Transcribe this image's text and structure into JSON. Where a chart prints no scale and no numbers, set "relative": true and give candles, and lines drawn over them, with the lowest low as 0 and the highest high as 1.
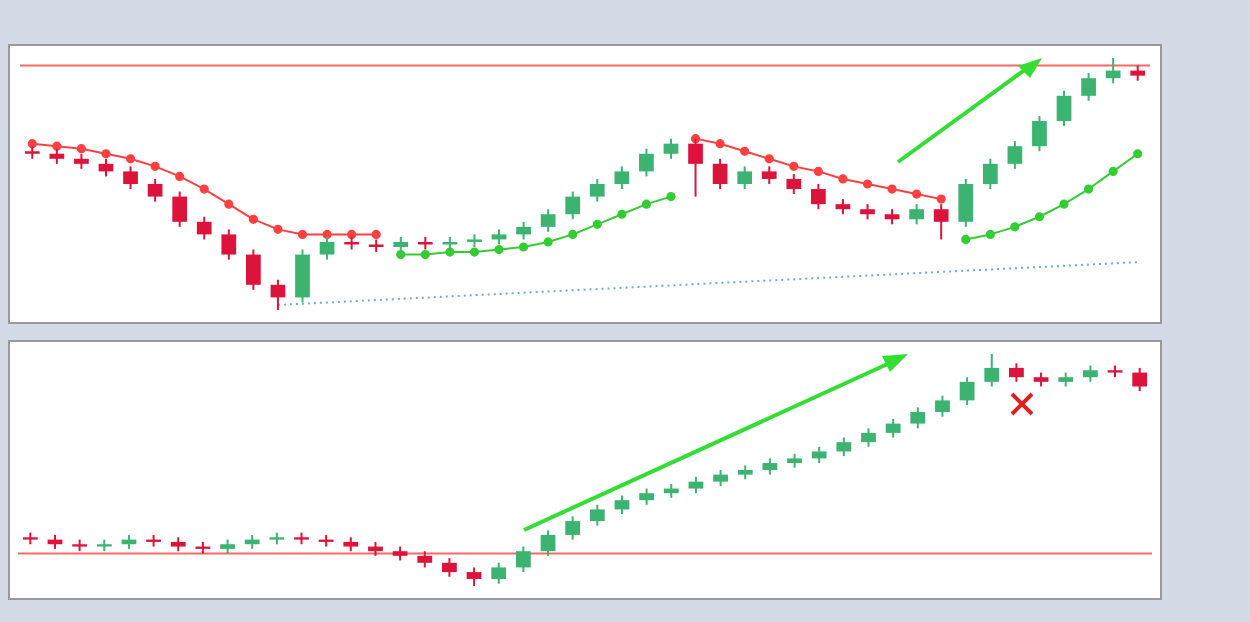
{
  "chart_data": [
    {
      "type": "candlestick",
      "relative": true,
      "categories": [
        null,
        null,
        null,
        null,
        null,
        null,
        null,
        null,
        null,
        null,
        null,
        null,
        null,
        null,
        null,
        null,
        null,
        null,
        null,
        null,
        null,
        null,
        null,
        null,
        null,
        null,
        null,
        null,
        null,
        null,
        null,
        null,
        null,
        null,
        null,
        null,
        null,
        null,
        null,
        null,
        null,
        null,
        null,
        null,
        null,
        null
      ],
      "ohlc": [
        [
          0.63,
          0.65,
          0.6,
          0.62
        ],
        [
          0.62,
          0.64,
          0.58,
          0.6
        ],
        [
          0.6,
          0.62,
          0.56,
          0.58
        ],
        [
          0.58,
          0.6,
          0.53,
          0.55
        ],
        [
          0.55,
          0.57,
          0.48,
          0.5
        ],
        [
          0.5,
          0.52,
          0.43,
          0.45
        ],
        [
          0.45,
          0.47,
          0.33,
          0.35
        ],
        [
          0.35,
          0.37,
          0.28,
          0.3
        ],
        [
          0.3,
          0.32,
          0.2,
          0.22
        ],
        [
          0.22,
          0.24,
          0.08,
          0.1
        ],
        [
          0.1,
          0.12,
          0.0,
          0.05
        ],
        [
          0.05,
          0.24,
          0.03,
          0.22
        ],
        [
          0.22,
          0.29,
          0.2,
          0.27
        ],
        [
          0.27,
          0.29,
          0.24,
          0.26
        ],
        [
          0.26,
          0.28,
          0.23,
          0.25
        ],
        [
          0.25,
          0.29,
          0.23,
          0.27
        ],
        [
          0.27,
          0.29,
          0.24,
          0.26
        ],
        [
          0.26,
          0.29,
          0.24,
          0.27
        ],
        [
          0.27,
          0.3,
          0.25,
          0.28
        ],
        [
          0.28,
          0.32,
          0.26,
          0.3
        ],
        [
          0.3,
          0.35,
          0.28,
          0.33
        ],
        [
          0.33,
          0.4,
          0.31,
          0.38
        ],
        [
          0.38,
          0.47,
          0.36,
          0.45
        ],
        [
          0.45,
          0.52,
          0.43,
          0.5
        ],
        [
          0.5,
          0.57,
          0.48,
          0.55
        ],
        [
          0.55,
          0.64,
          0.53,
          0.62
        ],
        [
          0.62,
          0.68,
          0.6,
          0.66
        ],
        [
          0.66,
          0.68,
          0.45,
          0.58
        ],
        [
          0.58,
          0.6,
          0.48,
          0.5
        ],
        [
          0.5,
          0.57,
          0.48,
          0.55
        ],
        [
          0.55,
          0.57,
          0.5,
          0.52
        ],
        [
          0.52,
          0.54,
          0.46,
          0.48
        ],
        [
          0.48,
          0.5,
          0.4,
          0.42
        ],
        [
          0.42,
          0.44,
          0.38,
          0.4
        ],
        [
          0.4,
          0.42,
          0.36,
          0.38
        ],
        [
          0.38,
          0.4,
          0.34,
          0.36
        ],
        [
          0.36,
          0.42,
          0.34,
          0.4
        ],
        [
          0.4,
          0.42,
          0.28,
          0.35
        ],
        [
          0.35,
          0.52,
          0.33,
          0.5
        ],
        [
          0.5,
          0.6,
          0.48,
          0.58
        ],
        [
          0.58,
          0.67,
          0.56,
          0.65
        ],
        [
          0.65,
          0.77,
          0.63,
          0.75
        ],
        [
          0.75,
          0.87,
          0.73,
          0.85
        ],
        [
          0.85,
          0.94,
          0.83,
          0.92
        ],
        [
          0.92,
          1.0,
          0.9,
          0.95
        ],
        [
          0.95,
          0.97,
          0.91,
          0.93
        ]
      ],
      "colors": [
        "#dc143c",
        "#dc143c",
        "#dc143c",
        "#dc143c",
        "#dc143c",
        "#dc143c",
        "#dc143c",
        "#dc143c",
        "#dc143c",
        "#dc143c",
        "#dc143c",
        "#3cb371",
        "#3cb371",
        "#dc143c",
        "#dc143c",
        "#3cb371",
        "#dc143c",
        "#3cb371",
        "#3cb371",
        "#3cb371",
        "#3cb371",
        "#3cb371",
        "#3cb371",
        "#3cb371",
        "#3cb371",
        "#3cb371",
        "#3cb371",
        "#dc143c",
        "#dc143c",
        "#3cb371",
        "#dc143c",
        "#dc143c",
        "#dc143c",
        "#dc143c",
        "#dc143c",
        "#dc143c",
        "#3cb371",
        "#dc143c",
        "#3cb371",
        "#3cb371",
        "#3cb371",
        "#3cb371",
        "#3cb371",
        "#3cb371",
        "#3cb371",
        "#dc143c"
      ],
      "series": [
        {
          "type": "line",
          "color": "#ff4040",
          "marker": "circle",
          "values": [
            0.66,
            0.65,
            0.64,
            0.62,
            0.6,
            0.57,
            0.53,
            0.48,
            0.42,
            0.36,
            0.32,
            0.3,
            0.3,
            0.3,
            0.3,
            null,
            null,
            null,
            null,
            null,
            null,
            null,
            null,
            null,
            null,
            null,
            null,
            0.68,
            0.66,
            0.63,
            0.6,
            0.57,
            0.55,
            0.52,
            0.5,
            0.48,
            0.46,
            0.44,
            null,
            null,
            null,
            null,
            null,
            null,
            null,
            null
          ]
        },
        {
          "type": "line",
          "color": "#33cc33",
          "marker": "circle",
          "values": [
            null,
            null,
            null,
            null,
            null,
            null,
            null,
            null,
            null,
            null,
            null,
            null,
            null,
            null,
            null,
            0.22,
            0.22,
            0.23,
            0.23,
            0.24,
            0.25,
            0.27,
            0.3,
            0.34,
            0.38,
            0.42,
            0.45,
            null,
            null,
            null,
            null,
            null,
            null,
            null,
            null,
            null,
            null,
            null,
            0.28,
            0.3,
            0.33,
            0.37,
            0.42,
            0.48,
            0.55,
            0.62
          ]
        },
        {
          "type": "line",
          "color": "#6fa8dc",
          "marker": "none",
          "line_style": "dotted",
          "values": [
            null,
            null,
            null,
            null,
            null,
            null,
            null,
            null,
            null,
            null,
            0.02,
            null,
            null,
            null,
            null,
            null,
            null,
            null,
            null,
            null,
            null,
            null,
            null,
            null,
            null,
            null,
            null,
            null,
            null,
            null,
            null,
            null,
            null,
            null,
            null,
            null,
            null,
            null,
            null,
            null,
            null,
            null,
            null,
            null,
            null,
            0.19
          ]
        }
      ],
      "ref_lines": [
        {
          "axis": "y",
          "value": 0.97,
          "color": "#ff6666"
        }
      ]
    },
    {
      "type": "candlestick",
      "relative": true,
      "categories": [
        null,
        null,
        null,
        null,
        null,
        null,
        null,
        null,
        null,
        null,
        null,
        null,
        null,
        null,
        null,
        null,
        null,
        null,
        null,
        null,
        null,
        null,
        null,
        null,
        null,
        null,
        null,
        null,
        null,
        null,
        null,
        null,
        null,
        null,
        null,
        null,
        null,
        null,
        null,
        null,
        null,
        null,
        null,
        null,
        null,
        null
      ],
      "ohlc": [
        [
          0.21,
          0.23,
          0.18,
          0.2
        ],
        [
          0.2,
          0.22,
          0.16,
          0.18
        ],
        [
          0.18,
          0.2,
          0.15,
          0.17
        ],
        [
          0.17,
          0.2,
          0.15,
          0.18
        ],
        [
          0.18,
          0.22,
          0.16,
          0.2
        ],
        [
          0.2,
          0.22,
          0.17,
          0.19
        ],
        [
          0.19,
          0.21,
          0.15,
          0.17
        ],
        [
          0.17,
          0.19,
          0.14,
          0.16
        ],
        [
          0.16,
          0.2,
          0.14,
          0.18
        ],
        [
          0.18,
          0.22,
          0.16,
          0.2
        ],
        [
          0.2,
          0.23,
          0.18,
          0.21
        ],
        [
          0.21,
          0.23,
          0.18,
          0.2
        ],
        [
          0.2,
          0.22,
          0.17,
          0.19
        ],
        [
          0.19,
          0.21,
          0.15,
          0.17
        ],
        [
          0.17,
          0.19,
          0.13,
          0.15
        ],
        [
          0.15,
          0.17,
          0.11,
          0.13
        ],
        [
          0.13,
          0.15,
          0.08,
          0.1
        ],
        [
          0.1,
          0.12,
          0.04,
          0.06
        ],
        [
          0.06,
          0.08,
          0.0,
          0.03
        ],
        [
          0.03,
          0.1,
          0.01,
          0.08
        ],
        [
          0.08,
          0.17,
          0.06,
          0.15
        ],
        [
          0.15,
          0.24,
          0.13,
          0.22
        ],
        [
          0.22,
          0.3,
          0.2,
          0.28
        ],
        [
          0.28,
          0.35,
          0.26,
          0.33
        ],
        [
          0.33,
          0.39,
          0.31,
          0.37
        ],
        [
          0.37,
          0.42,
          0.35,
          0.4
        ],
        [
          0.4,
          0.44,
          0.38,
          0.42
        ],
        [
          0.42,
          0.47,
          0.4,
          0.45
        ],
        [
          0.45,
          0.5,
          0.43,
          0.48
        ],
        [
          0.48,
          0.52,
          0.46,
          0.5
        ],
        [
          0.5,
          0.55,
          0.48,
          0.53
        ],
        [
          0.53,
          0.57,
          0.51,
          0.55
        ],
        [
          0.55,
          0.6,
          0.53,
          0.58
        ],
        [
          0.58,
          0.64,
          0.56,
          0.62
        ],
        [
          0.62,
          0.68,
          0.6,
          0.66
        ],
        [
          0.66,
          0.72,
          0.64,
          0.7
        ],
        [
          0.7,
          0.77,
          0.68,
          0.75
        ],
        [
          0.75,
          0.82,
          0.73,
          0.8
        ],
        [
          0.8,
          0.9,
          0.78,
          0.88
        ],
        [
          0.88,
          1.0,
          0.86,
          0.94
        ],
        [
          0.94,
          0.96,
          0.88,
          0.9
        ],
        [
          0.9,
          0.92,
          0.86,
          0.88
        ],
        [
          0.88,
          0.92,
          0.86,
          0.9
        ],
        [
          0.9,
          0.95,
          0.88,
          0.93
        ],
        [
          0.93,
          0.95,
          0.9,
          0.92
        ],
        [
          0.92,
          0.94,
          0.84,
          0.86
        ]
      ],
      "colors": [
        "#dc143c",
        "#dc143c",
        "#dc143c",
        "#3cb371",
        "#3cb371",
        "#dc143c",
        "#dc143c",
        "#dc143c",
        "#3cb371",
        "#3cb371",
        "#3cb371",
        "#dc143c",
        "#dc143c",
        "#dc143c",
        "#dc143c",
        "#dc143c",
        "#dc143c",
        "#dc143c",
        "#dc143c",
        "#3cb371",
        "#3cb371",
        "#3cb371",
        "#3cb371",
        "#3cb371",
        "#3cb371",
        "#3cb371",
        "#3cb371",
        "#3cb371",
        "#3cb371",
        "#3cb371",
        "#3cb371",
        "#3cb371",
        "#3cb371",
        "#3cb371",
        "#3cb371",
        "#3cb371",
        "#3cb371",
        "#3cb371",
        "#3cb371",
        "#3cb371",
        "#dc143c",
        "#dc143c",
        "#3cb371",
        "#3cb371",
        "#dc143c",
        "#dc143c"
      ],
      "ref_lines": [
        {
          "axis": "y",
          "value": 0.14,
          "color": "#ff6666"
        }
      ]
    }
  ]
}
